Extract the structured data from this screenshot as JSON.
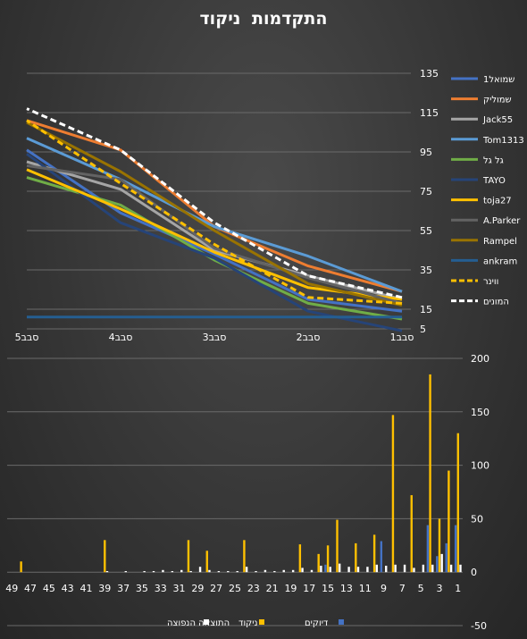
{
  "chart_data": [
    {
      "type": "line",
      "title": "התקדמות  ניקוד",
      "categories": [
        "סבב1",
        "סבב2",
        "סבב3",
        "סבב4",
        "סבב5"
      ],
      "yticks": [
        5,
        15,
        35,
        55,
        75,
        95,
        115,
        135
      ],
      "ylim": [
        5,
        135
      ],
      "grid": true,
      "legend_position": "right",
      "series": [
        {
          "name": "שמואל1",
          "color": "#4472c4",
          "dash": false,
          "values": [
            14,
            20,
            43,
            64,
            96
          ]
        },
        {
          "name": "שמוליק",
          "color": "#ed7d31",
          "dash": false,
          "values": [
            24,
            37,
            57,
            96,
            111
          ]
        },
        {
          "name": "Jack55",
          "color": "#a5a5a5",
          "dash": false,
          "values": [
            20,
            32,
            45,
            76,
            90
          ]
        },
        {
          "name": "Tom1313",
          "color": "#5b9bd5",
          "dash": false,
          "values": [
            24,
            42,
            57,
            81,
            102
          ]
        },
        {
          "name": "גל גל",
          "color": "#70ad47",
          "dash": false,
          "values": [
            10,
            18,
            40,
            68,
            82
          ]
        },
        {
          "name": "TAYO",
          "color": "#264478",
          "dash": false,
          "values": [
            4,
            14,
            41,
            59,
            94
          ]
        },
        {
          "name": "toja27",
          "color": "#ffc000",
          "dash": false,
          "values": [
            20,
            26,
            44,
            66,
            86
          ]
        },
        {
          "name": "A.Parker",
          "color": "#636363",
          "dash": false,
          "values": [
            18,
            31,
            46,
            81,
            88
          ]
        },
        {
          "name": "Rampel",
          "color": "#997300",
          "dash": false,
          "values": [
            17,
            28,
            55,
            85,
            110
          ]
        },
        {
          "name": "ankram",
          "color": "#255e91",
          "dash": false,
          "values": [
            11,
            11,
            11,
            11,
            11
          ]
        },
        {
          "name": "ווינר",
          "color": "#ffc000",
          "dash": true,
          "values": [
            18,
            21,
            48,
            79,
            111
          ]
        },
        {
          "name": "המונים",
          "color": "#ffffff",
          "dash": true,
          "values": [
            21,
            32,
            59,
            96,
            117
          ]
        }
      ]
    },
    {
      "type": "bar",
      "categories": [
        1,
        2,
        3,
        4,
        5,
        6,
        7,
        8,
        9,
        10,
        11,
        12,
        13,
        14,
        15,
        16,
        17,
        18,
        19,
        20,
        21,
        22,
        23,
        24,
        25,
        26,
        27,
        28,
        29,
        30,
        31,
        32,
        33,
        34,
        35,
        36,
        37,
        38,
        39,
        40,
        41,
        42,
        43,
        44,
        45,
        46,
        47,
        48,
        49
      ],
      "xtick_labels": [
        "49",
        "47",
        "45",
        "43",
        "41",
        "39",
        "37",
        "35",
        "33",
        "31",
        "29",
        "27",
        "25",
        "23",
        "21",
        "19",
        "17",
        "15",
        "13",
        "11",
        "9",
        "7",
        "5",
        "3",
        "1"
      ],
      "yticks": [
        -50,
        0,
        50,
        100,
        150,
        200
      ],
      "ylim": [
        -50,
        200
      ],
      "grid": true,
      "legend_position": "bottom",
      "series": [
        {
          "name": "דיוקים",
          "color": "#4472c4",
          "values": [
            44,
            27,
            15,
            44,
            0,
            0,
            0,
            0,
            29,
            0,
            0,
            0,
            0,
            0,
            7,
            0,
            0,
            0,
            0,
            0,
            0,
            0,
            0,
            0,
            0,
            0,
            0,
            0,
            0,
            0,
            0,
            0,
            0,
            0,
            0,
            0,
            0,
            0,
            0,
            0,
            0,
            0,
            0,
            0,
            0,
            0,
            0,
            0,
            0
          ]
        },
        {
          "name": "ניקוד",
          "color": "#ffc000",
          "values": [
            130,
            95,
            50,
            185,
            0,
            72,
            0,
            147,
            0,
            35,
            0,
            27,
            0,
            49,
            25,
            17,
            0,
            26,
            0,
            0,
            0,
            0,
            0,
            30,
            0,
            0,
            0,
            20,
            0,
            30,
            0,
            0,
            0,
            0,
            0,
            0,
            0,
            0,
            30,
            0,
            0,
            0,
            0,
            0,
            0,
            0,
            0,
            10,
            0
          ]
        },
        {
          "name": "התוצאה הנפוצה",
          "color": "#ffffff",
          "values": [
            7,
            7,
            17,
            7,
            7,
            4,
            7,
            7,
            6,
            7,
            5,
            5,
            5,
            8,
            5,
            6,
            2,
            4,
            2,
            2,
            1,
            2,
            1,
            5,
            1,
            1,
            1,
            2,
            5,
            1,
            2,
            1,
            2,
            1,
            1,
            0,
            1,
            0,
            1,
            0,
            0,
            0,
            0,
            0,
            0,
            0,
            0,
            0,
            0
          ]
        }
      ]
    }
  ]
}
